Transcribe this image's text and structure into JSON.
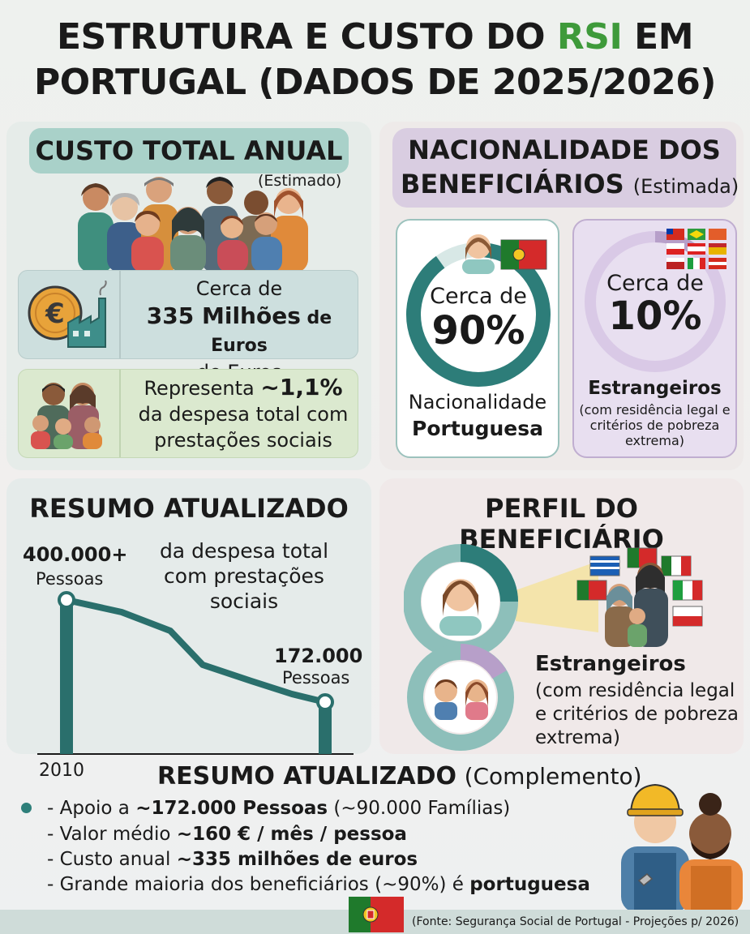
{
  "title": {
    "line1_pre": "ESTRUTURA E CUSTO DO ",
    "line1_accent": "RSI",
    "line1_post": " EM",
    "line2": "PORTUGAL (DADOS DE 2025/2026)",
    "accent_color": "#3e9a3a"
  },
  "custo": {
    "heading": "CUSTO TOTAL ANUAL",
    "note": "(Estimado)",
    "cost_prefix": "Cerca de",
    "cost_value": "335 Milhões",
    "cost_unit_bold": "de Euros",
    "cost_unit": "de Euros",
    "pct_prefix": "Representa",
    "pct_value": "~1,1%",
    "pct_line2": "da despesa total com",
    "pct_line3": "prestações sociais",
    "icons": [
      "euro-coin-icon",
      "factory-icon",
      "family-icon"
    ]
  },
  "nacionalidade": {
    "heading_l1": "NACIONALIDADE DOS",
    "heading_l2": "BENEFICIÁRIOS",
    "heading_note": "(Estimada)",
    "pt": {
      "prefix": "Cerca de",
      "value": "90%",
      "share": 0.9,
      "label1": "Nacionalidade",
      "label2": "Portuguesa"
    },
    "foreign": {
      "prefix": "Cerca de",
      "value": "10%",
      "share": 0.1,
      "label1": "Estrangeiros",
      "label2": "(com residência legal e critérios de pobreza extrema)"
    },
    "colors": {
      "pt": "#2d7d79",
      "foreign": "#b79fc9"
    }
  },
  "resumo": {
    "heading": "RESUMO ATUALIZADO",
    "start_value": "400.000+",
    "start_unit": "Pessoas",
    "description": "da despesa total com prestações sociais",
    "end_value": "172.000",
    "end_unit": "Pessoas",
    "year_label": "2010"
  },
  "chart_data": {
    "type": "line",
    "series": [
      {
        "values": [
          400000,
          300000,
          172000
        ]
      }
    ],
    "points_label": [
      "400.000+",
      "172.000"
    ],
    "xlabel": "",
    "ylabel": ""
  },
  "perfil": {
    "heading": "PERFIL DO BENEFICIÁRIO",
    "label1": "Estrangeiros",
    "label2": "(com residência legal e critérios de pobreza extrema)"
  },
  "complemento": {
    "heading_bold": "RESUMO ATUALIZADO",
    "heading_note": "(Complemento)",
    "lines": [
      {
        "pre": "- Apoio a ",
        "bold": "~172.000 Pessoas",
        "post": " (~90.000 Famílias)"
      },
      {
        "pre": "- Valor médio ",
        "bold": "~160 € / mês / pessoa",
        "post": ""
      },
      {
        "pre": "- Custo anual ",
        "bold": "~335 milhões de euros",
        "post": ""
      },
      {
        "pre": "- Grande maioria dos beneficiários (~90%) é ",
        "bold": "portuguesa",
        "post": ""
      }
    ]
  },
  "footer": {
    "source": "(Fonte: Segurança Social de Portugal - Projeções p/ 2026)"
  }
}
